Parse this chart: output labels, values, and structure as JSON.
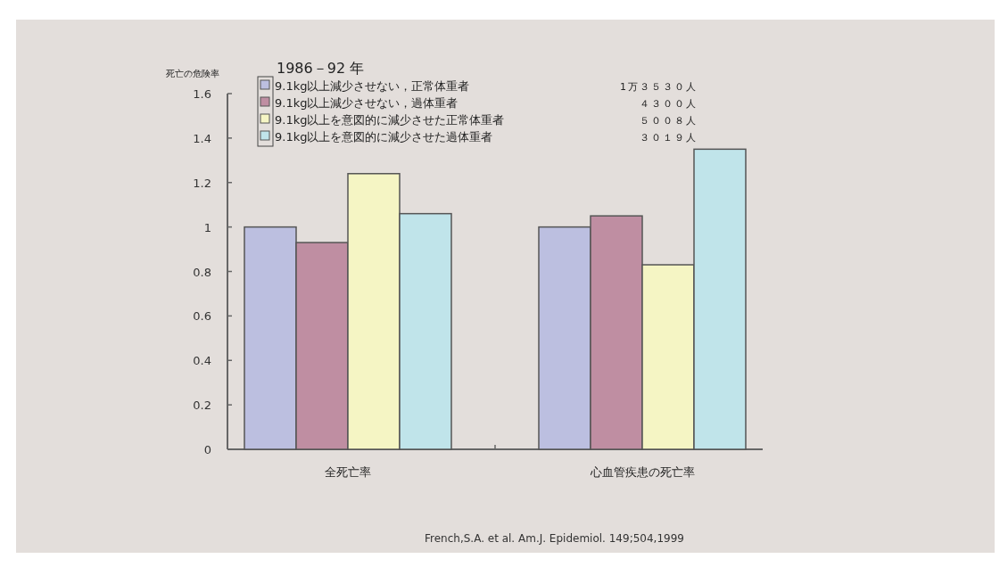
{
  "chart_data": {
    "type": "bar",
    "title": "1986－92 年",
    "ylabel": "死亡の危険率",
    "categories": [
      "全死亡率",
      "心血管疾患の死亡率"
    ],
    "series": [
      {
        "name": "9.1kg以上減少させない，正常体重者",
        "color": "#bcbfe0",
        "values": [
          1.0,
          1.0
        ]
      },
      {
        "name": "9.1kg以上減少させない，過体重者",
        "color": "#bf8ea2",
        "values": [
          0.93,
          1.05
        ]
      },
      {
        "name": "9.1kg以上を意図的に減少させた正常体重者",
        "color": "#f5f5c4",
        "values": [
          1.24,
          0.83
        ]
      },
      {
        "name": "9.1kg以上を意図的に減少させた過体重者",
        "color": "#c0e4ea",
        "values": [
          1.06,
          1.35
        ]
      }
    ],
    "annotations": [
      "1万３５３０人",
      "４３００人",
      "５００８人",
      "３０１９人",
      "French,S.A. et al. Am.J. Epidemiol. 149;504,1999"
    ],
    "ylim": [
      0,
      1.6
    ],
    "yticks": [
      0,
      0.2,
      0.4,
      0.6,
      0.8,
      1,
      1.2,
      1.4,
      1.6
    ],
    "grid": false,
    "legend": "top left"
  }
}
